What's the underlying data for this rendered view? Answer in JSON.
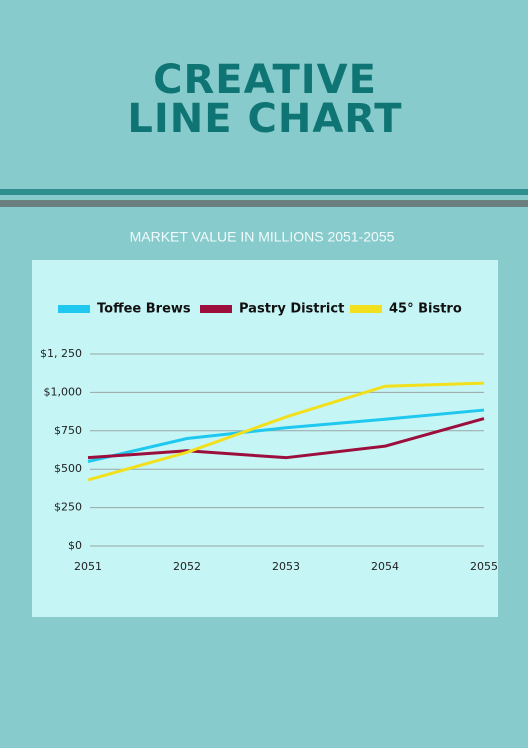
{
  "chart_data": {
    "type": "line",
    "title_lines": [
      "CREATIVE",
      "LINE CHART"
    ],
    "subtitle": "MARKET VALUE IN MILLIONS 2051-2055",
    "x": [
      2051,
      2052,
      2053,
      2054,
      2055
    ],
    "xlim": [
      2051,
      2055
    ],
    "xticks": [
      2051,
      2052,
      2053,
      2054,
      2055
    ],
    "ylim": [
      0,
      1250
    ],
    "yticks": [
      {
        "value": 0,
        "label": "$0"
      },
      {
        "value": 250,
        "label": "$250"
      },
      {
        "value": 500,
        "label": "$500"
      },
      {
        "value": 750,
        "label": "$750"
      },
      {
        "value": 1000,
        "label": "$1,000"
      },
      {
        "value": 1250,
        "label": "$1, 250"
      }
    ],
    "grid": true,
    "legend": "top",
    "series": [
      {
        "name": "Toffee Brews",
        "color": "#1ec8ee",
        "values": [
          550,
          700,
          770,
          825,
          885
        ]
      },
      {
        "name": "Pastry District",
        "color": "#9c0f3c",
        "values": [
          575,
          620,
          575,
          650,
          830
        ]
      },
      {
        "name": "45° Bistro",
        "color": "#f2e01c",
        "values": [
          430,
          610,
          840,
          1040,
          1060
        ]
      }
    ]
  }
}
